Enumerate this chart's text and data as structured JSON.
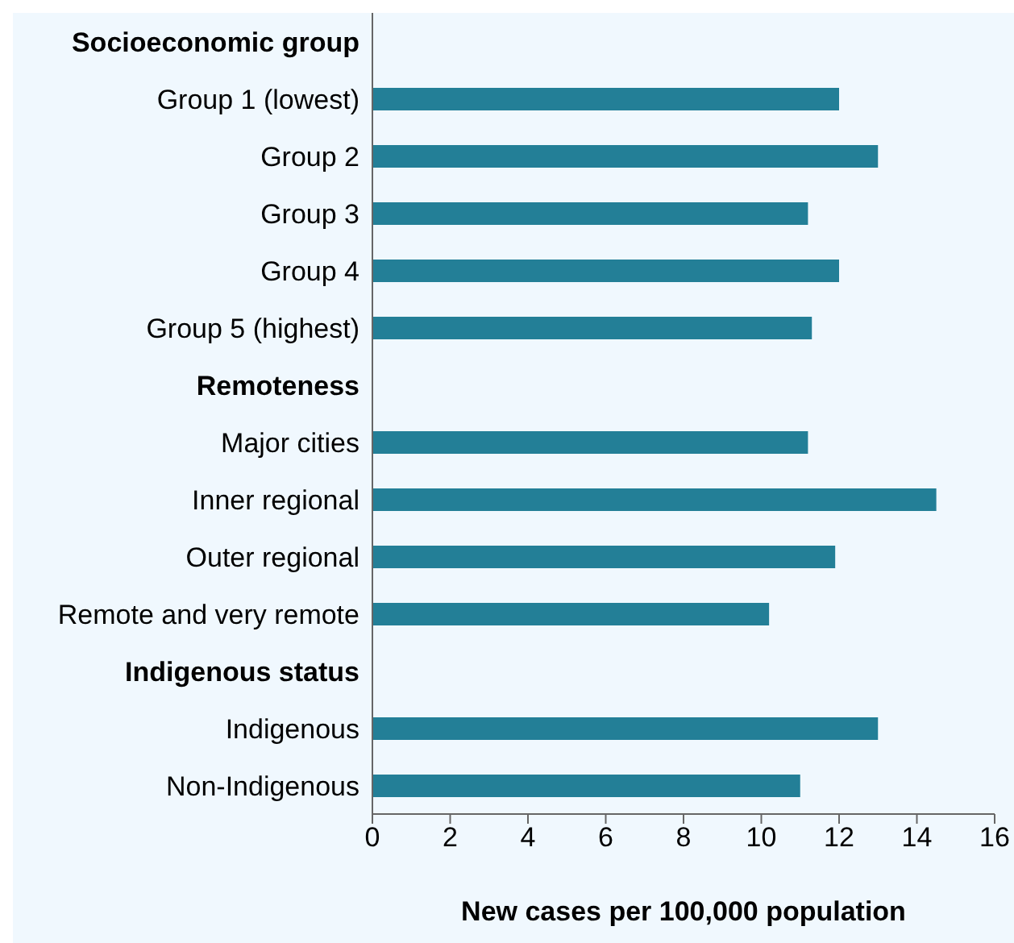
{
  "chart_data": {
    "type": "bar",
    "orientation": "horizontal",
    "xlabel": "New cases per 100,000 population",
    "categories": [
      "Socioeconomic group",
      "Group 1 (lowest)",
      "Group 2",
      "Group 3",
      "Group 4",
      "Group 5 (highest)",
      "Remoteness",
      "Major cities",
      "Inner regional",
      "Outer regional",
      "Remote and very remote",
      "Indigenous status",
      "Indigenous",
      "Non-Indigenous"
    ],
    "values": [
      null,
      12.0,
      13.0,
      11.2,
      12.0,
      11.3,
      null,
      11.2,
      14.5,
      11.9,
      10.2,
      null,
      13.0,
      11.0
    ],
    "color": "#237f97",
    "xlim": [
      0,
      16
    ],
    "xticks": [
      0,
      2,
      4,
      6,
      8,
      10,
      12,
      14,
      16
    ]
  }
}
